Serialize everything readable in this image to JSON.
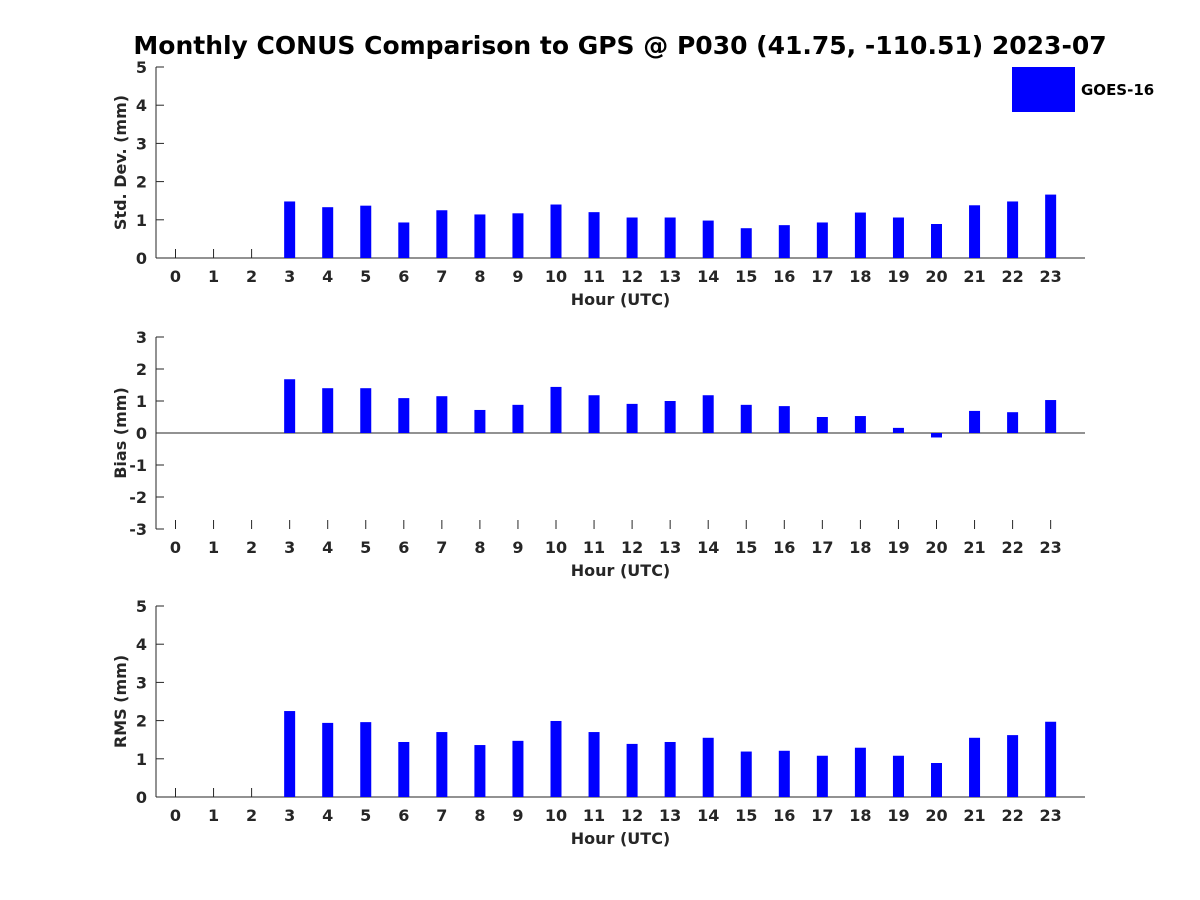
{
  "chart_title": "Monthly CONUS Comparison to GPS @ P030 (41.75, -110.51) 2023-07",
  "legend": {
    "label": "GOES-16",
    "color": "#0000ff"
  },
  "chart_data": [
    {
      "type": "bar",
      "ylabel": "Std. Dev. (mm)",
      "xlabel": "Hour (UTC)",
      "ylim": [
        0,
        5
      ],
      "yticks": [
        0,
        1,
        2,
        3,
        4,
        5
      ],
      "categories": [
        "0",
        "1",
        "2",
        "3",
        "4",
        "5",
        "6",
        "7",
        "8",
        "9",
        "10",
        "11",
        "12",
        "13",
        "14",
        "15",
        "16",
        "17",
        "18",
        "19",
        "20",
        "21",
        "22",
        "23"
      ],
      "series": [
        {
          "name": "GOES-16",
          "values": [
            null,
            null,
            null,
            1.48,
            1.33,
            1.37,
            0.93,
            1.25,
            1.14,
            1.17,
            1.4,
            1.2,
            1.06,
            1.06,
            0.98,
            0.78,
            0.86,
            0.93,
            1.19,
            1.06,
            0.89,
            1.38,
            1.48,
            1.66
          ]
        }
      ]
    },
    {
      "type": "bar",
      "ylabel": "Bias (mm)",
      "xlabel": "Hour (UTC)",
      "ylim": [
        -3,
        3
      ],
      "yticks": [
        -3,
        -2,
        -1,
        0,
        1,
        2,
        3
      ],
      "categories": [
        "0",
        "1",
        "2",
        "3",
        "4",
        "5",
        "6",
        "7",
        "8",
        "9",
        "10",
        "11",
        "12",
        "13",
        "14",
        "15",
        "16",
        "17",
        "18",
        "19",
        "20",
        "21",
        "22",
        "23"
      ],
      "series": [
        {
          "name": "GOES-16",
          "values": [
            null,
            null,
            null,
            1.68,
            1.4,
            1.4,
            1.09,
            1.15,
            0.72,
            0.88,
            1.44,
            1.18,
            0.91,
            1.0,
            1.18,
            0.88,
            0.84,
            0.5,
            0.53,
            0.16,
            -0.14,
            0.69,
            0.65,
            1.03
          ]
        }
      ]
    },
    {
      "type": "bar",
      "ylabel": "RMS (mm)",
      "xlabel": "Hour (UTC)",
      "ylim": [
        0,
        5
      ],
      "yticks": [
        0,
        1,
        2,
        3,
        4,
        5
      ],
      "categories": [
        "0",
        "1",
        "2",
        "3",
        "4",
        "5",
        "6",
        "7",
        "8",
        "9",
        "10",
        "11",
        "12",
        "13",
        "14",
        "15",
        "16",
        "17",
        "18",
        "19",
        "20",
        "21",
        "22",
        "23"
      ],
      "series": [
        {
          "name": "GOES-16",
          "values": [
            null,
            null,
            null,
            2.25,
            1.94,
            1.96,
            1.44,
            1.7,
            1.36,
            1.47,
            1.99,
            1.7,
            1.39,
            1.44,
            1.55,
            1.19,
            1.21,
            1.08,
            1.29,
            1.08,
            0.89,
            1.55,
            1.62,
            1.97
          ]
        }
      ]
    }
  ]
}
